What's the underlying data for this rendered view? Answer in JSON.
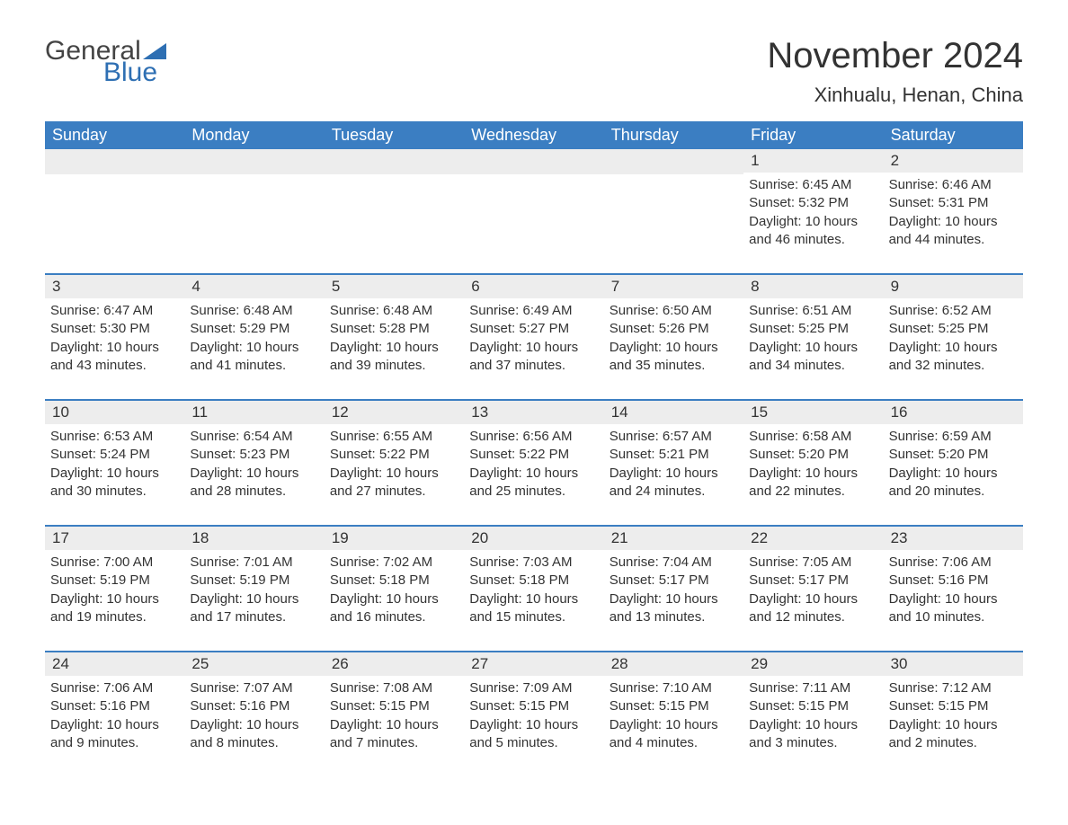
{
  "brand": {
    "word1": "General",
    "word2": "Blue",
    "word1_color": "#444444",
    "word2_color": "#2e6fb3",
    "sail_color": "#2e6fb3"
  },
  "title": {
    "month": "November 2024",
    "location": "Xinhualu, Henan, China"
  },
  "colors": {
    "header_bg": "#3b7ec2",
    "header_text": "#ffffff",
    "daynum_bg": "#ededed",
    "row_divider": "#3b7ec2",
    "body_text": "#333333",
    "page_bg": "#ffffff"
  },
  "weekdays": [
    "Sunday",
    "Monday",
    "Tuesday",
    "Wednesday",
    "Thursday",
    "Friday",
    "Saturday"
  ],
  "weeks": [
    [
      null,
      null,
      null,
      null,
      null,
      {
        "day": "1",
        "sunrise": "Sunrise: 6:45 AM",
        "sunset": "Sunset: 5:32 PM",
        "daylight": "Daylight: 10 hours and 46 minutes."
      },
      {
        "day": "2",
        "sunrise": "Sunrise: 6:46 AM",
        "sunset": "Sunset: 5:31 PM",
        "daylight": "Daylight: 10 hours and 44 minutes."
      }
    ],
    [
      {
        "day": "3",
        "sunrise": "Sunrise: 6:47 AM",
        "sunset": "Sunset: 5:30 PM",
        "daylight": "Daylight: 10 hours and 43 minutes."
      },
      {
        "day": "4",
        "sunrise": "Sunrise: 6:48 AM",
        "sunset": "Sunset: 5:29 PM",
        "daylight": "Daylight: 10 hours and 41 minutes."
      },
      {
        "day": "5",
        "sunrise": "Sunrise: 6:48 AM",
        "sunset": "Sunset: 5:28 PM",
        "daylight": "Daylight: 10 hours and 39 minutes."
      },
      {
        "day": "6",
        "sunrise": "Sunrise: 6:49 AM",
        "sunset": "Sunset: 5:27 PM",
        "daylight": "Daylight: 10 hours and 37 minutes."
      },
      {
        "day": "7",
        "sunrise": "Sunrise: 6:50 AM",
        "sunset": "Sunset: 5:26 PM",
        "daylight": "Daylight: 10 hours and 35 minutes."
      },
      {
        "day": "8",
        "sunrise": "Sunrise: 6:51 AM",
        "sunset": "Sunset: 5:25 PM",
        "daylight": "Daylight: 10 hours and 34 minutes."
      },
      {
        "day": "9",
        "sunrise": "Sunrise: 6:52 AM",
        "sunset": "Sunset: 5:25 PM",
        "daylight": "Daylight: 10 hours and 32 minutes."
      }
    ],
    [
      {
        "day": "10",
        "sunrise": "Sunrise: 6:53 AM",
        "sunset": "Sunset: 5:24 PM",
        "daylight": "Daylight: 10 hours and 30 minutes."
      },
      {
        "day": "11",
        "sunrise": "Sunrise: 6:54 AM",
        "sunset": "Sunset: 5:23 PM",
        "daylight": "Daylight: 10 hours and 28 minutes."
      },
      {
        "day": "12",
        "sunrise": "Sunrise: 6:55 AM",
        "sunset": "Sunset: 5:22 PM",
        "daylight": "Daylight: 10 hours and 27 minutes."
      },
      {
        "day": "13",
        "sunrise": "Sunrise: 6:56 AM",
        "sunset": "Sunset: 5:22 PM",
        "daylight": "Daylight: 10 hours and 25 minutes."
      },
      {
        "day": "14",
        "sunrise": "Sunrise: 6:57 AM",
        "sunset": "Sunset: 5:21 PM",
        "daylight": "Daylight: 10 hours and 24 minutes."
      },
      {
        "day": "15",
        "sunrise": "Sunrise: 6:58 AM",
        "sunset": "Sunset: 5:20 PM",
        "daylight": "Daylight: 10 hours and 22 minutes."
      },
      {
        "day": "16",
        "sunrise": "Sunrise: 6:59 AM",
        "sunset": "Sunset: 5:20 PM",
        "daylight": "Daylight: 10 hours and 20 minutes."
      }
    ],
    [
      {
        "day": "17",
        "sunrise": "Sunrise: 7:00 AM",
        "sunset": "Sunset: 5:19 PM",
        "daylight": "Daylight: 10 hours and 19 minutes."
      },
      {
        "day": "18",
        "sunrise": "Sunrise: 7:01 AM",
        "sunset": "Sunset: 5:19 PM",
        "daylight": "Daylight: 10 hours and 17 minutes."
      },
      {
        "day": "19",
        "sunrise": "Sunrise: 7:02 AM",
        "sunset": "Sunset: 5:18 PM",
        "daylight": "Daylight: 10 hours and 16 minutes."
      },
      {
        "day": "20",
        "sunrise": "Sunrise: 7:03 AM",
        "sunset": "Sunset: 5:18 PM",
        "daylight": "Daylight: 10 hours and 15 minutes."
      },
      {
        "day": "21",
        "sunrise": "Sunrise: 7:04 AM",
        "sunset": "Sunset: 5:17 PM",
        "daylight": "Daylight: 10 hours and 13 minutes."
      },
      {
        "day": "22",
        "sunrise": "Sunrise: 7:05 AM",
        "sunset": "Sunset: 5:17 PM",
        "daylight": "Daylight: 10 hours and 12 minutes."
      },
      {
        "day": "23",
        "sunrise": "Sunrise: 7:06 AM",
        "sunset": "Sunset: 5:16 PM",
        "daylight": "Daylight: 10 hours and 10 minutes."
      }
    ],
    [
      {
        "day": "24",
        "sunrise": "Sunrise: 7:06 AM",
        "sunset": "Sunset: 5:16 PM",
        "daylight": "Daylight: 10 hours and 9 minutes."
      },
      {
        "day": "25",
        "sunrise": "Sunrise: 7:07 AM",
        "sunset": "Sunset: 5:16 PM",
        "daylight": "Daylight: 10 hours and 8 minutes."
      },
      {
        "day": "26",
        "sunrise": "Sunrise: 7:08 AM",
        "sunset": "Sunset: 5:15 PM",
        "daylight": "Daylight: 10 hours and 7 minutes."
      },
      {
        "day": "27",
        "sunrise": "Sunrise: 7:09 AM",
        "sunset": "Sunset: 5:15 PM",
        "daylight": "Daylight: 10 hours and 5 minutes."
      },
      {
        "day": "28",
        "sunrise": "Sunrise: 7:10 AM",
        "sunset": "Sunset: 5:15 PM",
        "daylight": "Daylight: 10 hours and 4 minutes."
      },
      {
        "day": "29",
        "sunrise": "Sunrise: 7:11 AM",
        "sunset": "Sunset: 5:15 PM",
        "daylight": "Daylight: 10 hours and 3 minutes."
      },
      {
        "day": "30",
        "sunrise": "Sunrise: 7:12 AM",
        "sunset": "Sunset: 5:15 PM",
        "daylight": "Daylight: 10 hours and 2 minutes."
      }
    ]
  ]
}
